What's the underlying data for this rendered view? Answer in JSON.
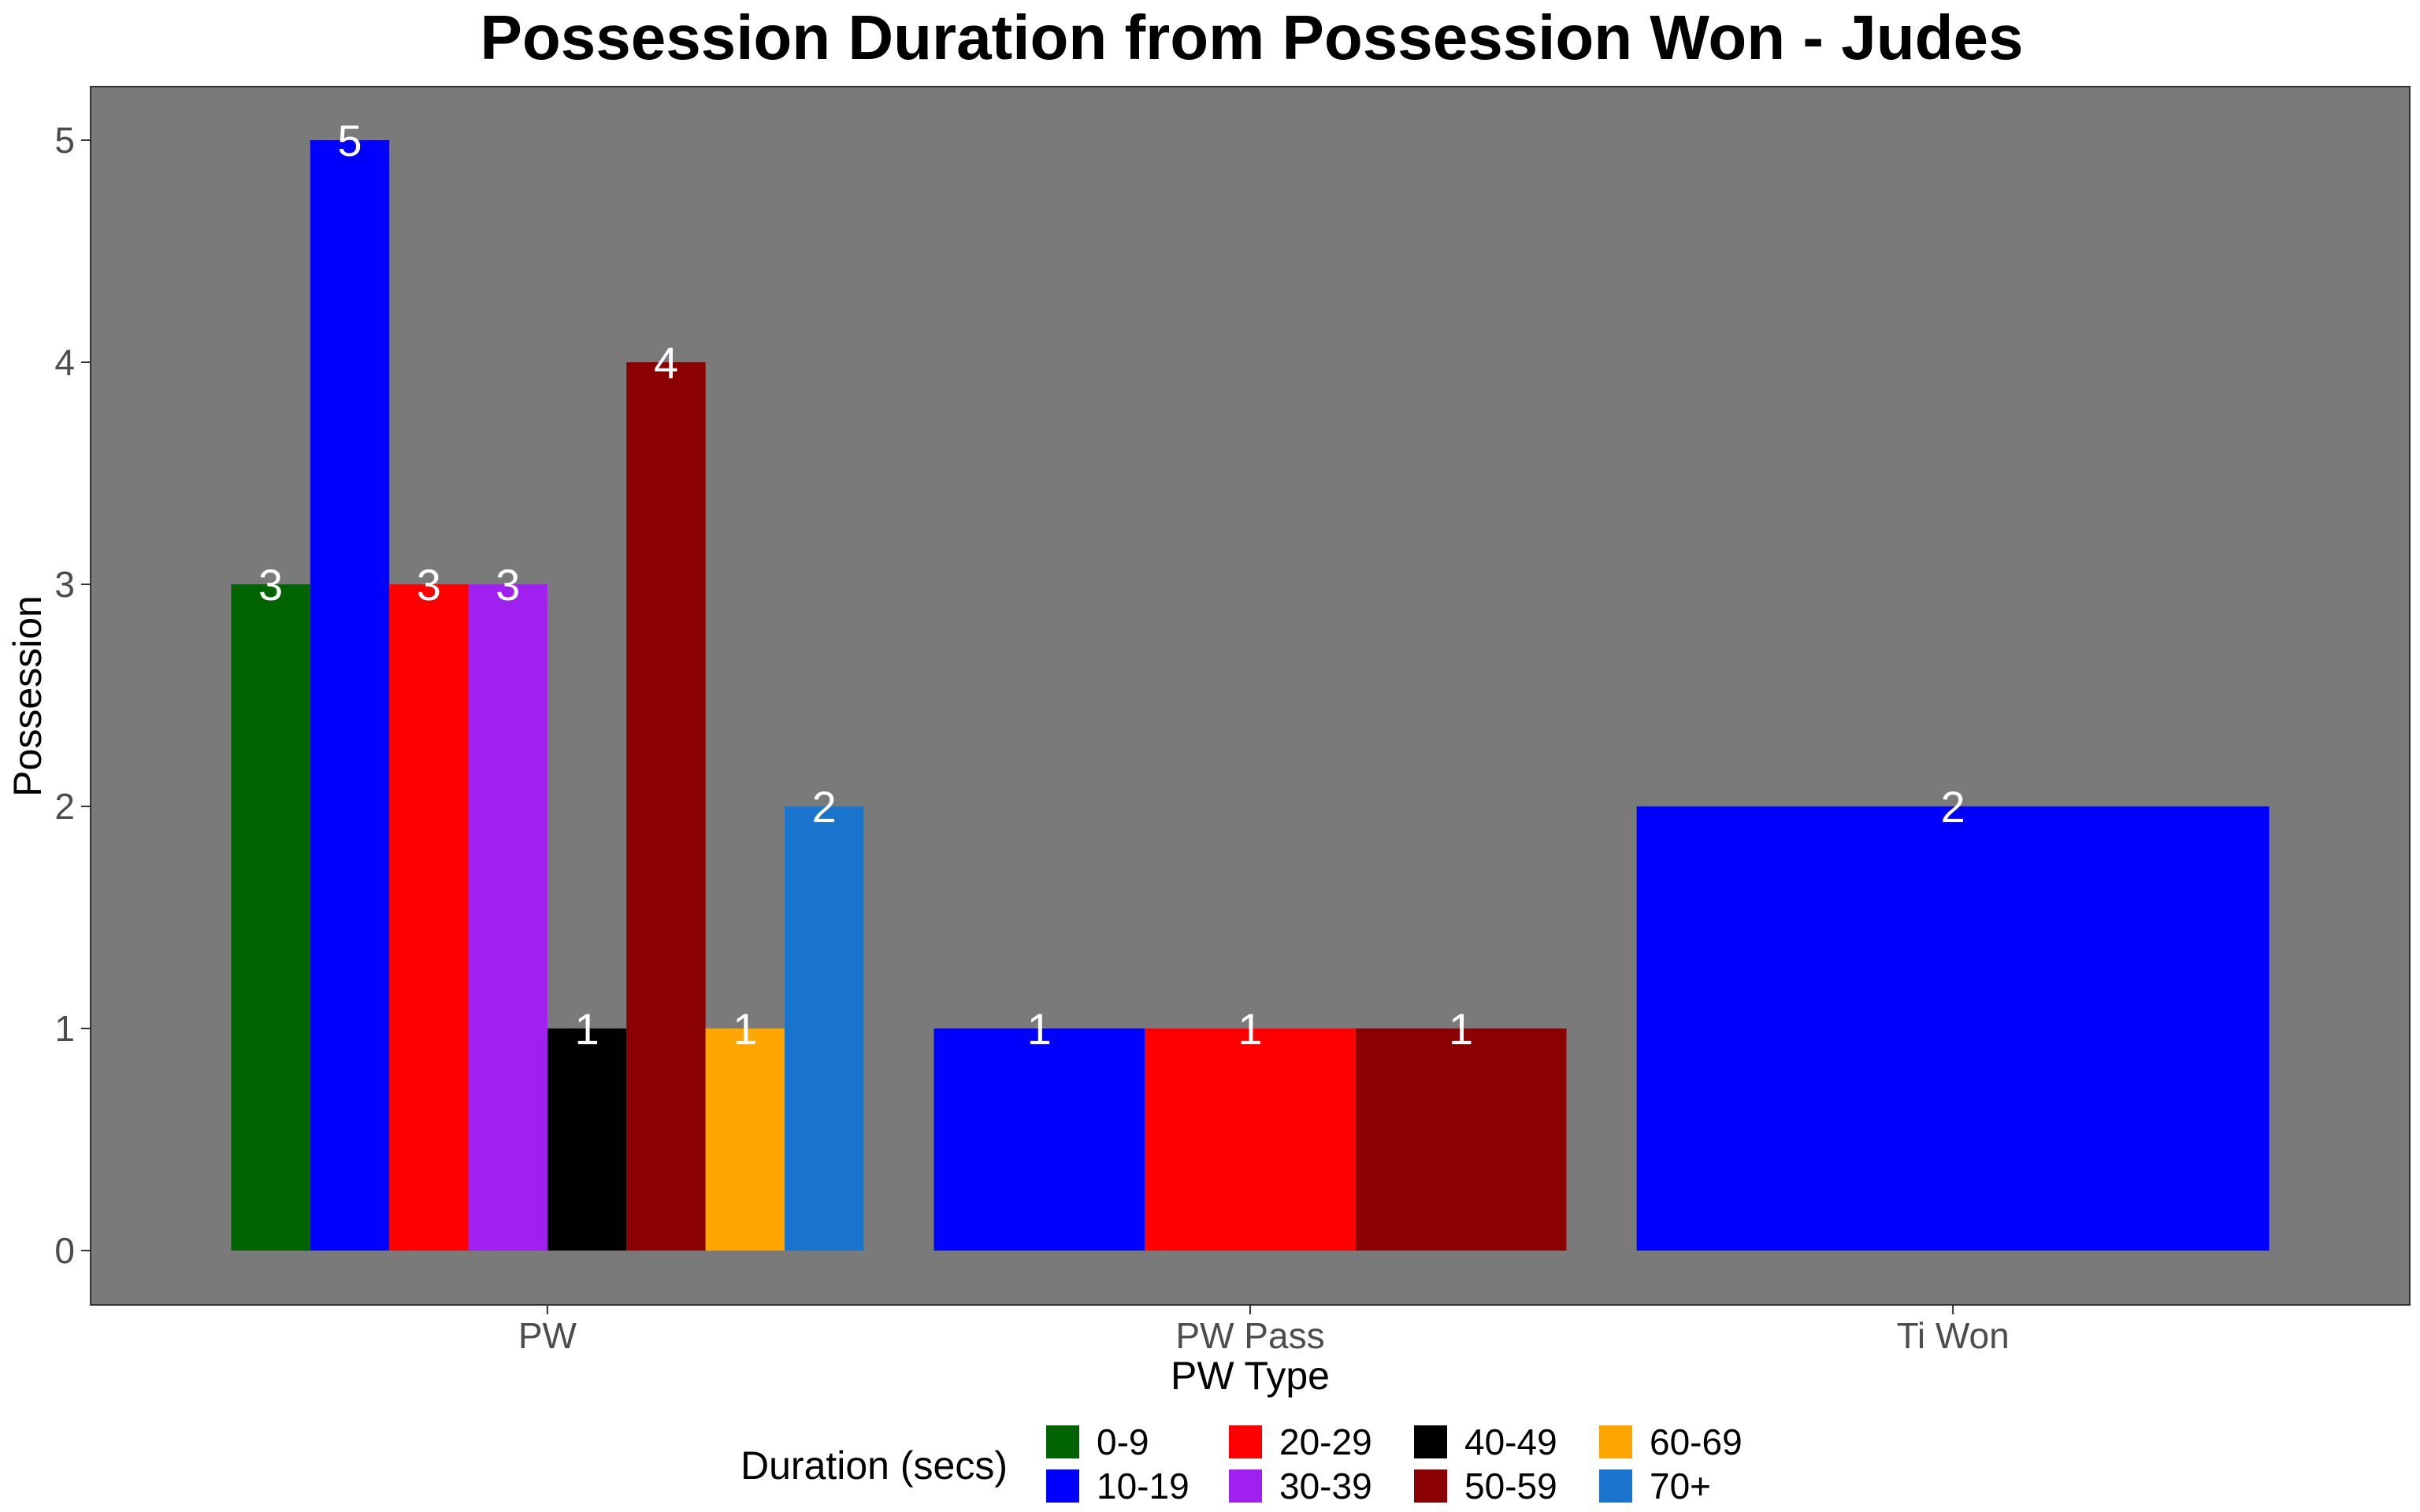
{
  "chart_data": {
    "type": "bar",
    "title": "Possession Duration from Possession Won - Judes",
    "xlabel": "PW Type",
    "ylabel": "Possession",
    "categories": [
      "PW",
      "PW Pass",
      "Ti Won"
    ],
    "ylim": [
      0,
      5
    ],
    "yticks": [
      0,
      1,
      2,
      3,
      4,
      5
    ],
    "panel_background": "#7a7a7a",
    "grid": false,
    "legend": {
      "title": "Duration (secs)",
      "position": "bottom",
      "entries": [
        {
          "label": "0-9",
          "color": "#006400"
        },
        {
          "label": "10-19",
          "color": "#0000ff"
        },
        {
          "label": "20-29",
          "color": "#ff0000"
        },
        {
          "label": "30-39",
          "color": "#a020f0"
        },
        {
          "label": "40-49",
          "color": "#000000"
        },
        {
          "label": "50-59",
          "color": "#8b0000"
        },
        {
          "label": "60-69",
          "color": "#ffa500"
        },
        {
          "label": "70+",
          "color": "#1874cd"
        }
      ]
    },
    "groups": [
      {
        "category": "PW",
        "bars": [
          {
            "duration": "0-9",
            "value": 3
          },
          {
            "duration": "10-19",
            "value": 5
          },
          {
            "duration": "20-29",
            "value": 3
          },
          {
            "duration": "30-39",
            "value": 3
          },
          {
            "duration": "40-49",
            "value": 1
          },
          {
            "duration": "50-59",
            "value": 4
          },
          {
            "duration": "60-69",
            "value": 1
          },
          {
            "duration": "70+",
            "value": 2
          }
        ]
      },
      {
        "category": "PW Pass",
        "bars": [
          {
            "duration": "10-19",
            "value": 1
          },
          {
            "duration": "20-29",
            "value": 1
          },
          {
            "duration": "50-59",
            "value": 1
          }
        ]
      },
      {
        "category": "Ti Won",
        "bars": [
          {
            "duration": "10-19",
            "value": 2
          }
        ]
      }
    ]
  }
}
